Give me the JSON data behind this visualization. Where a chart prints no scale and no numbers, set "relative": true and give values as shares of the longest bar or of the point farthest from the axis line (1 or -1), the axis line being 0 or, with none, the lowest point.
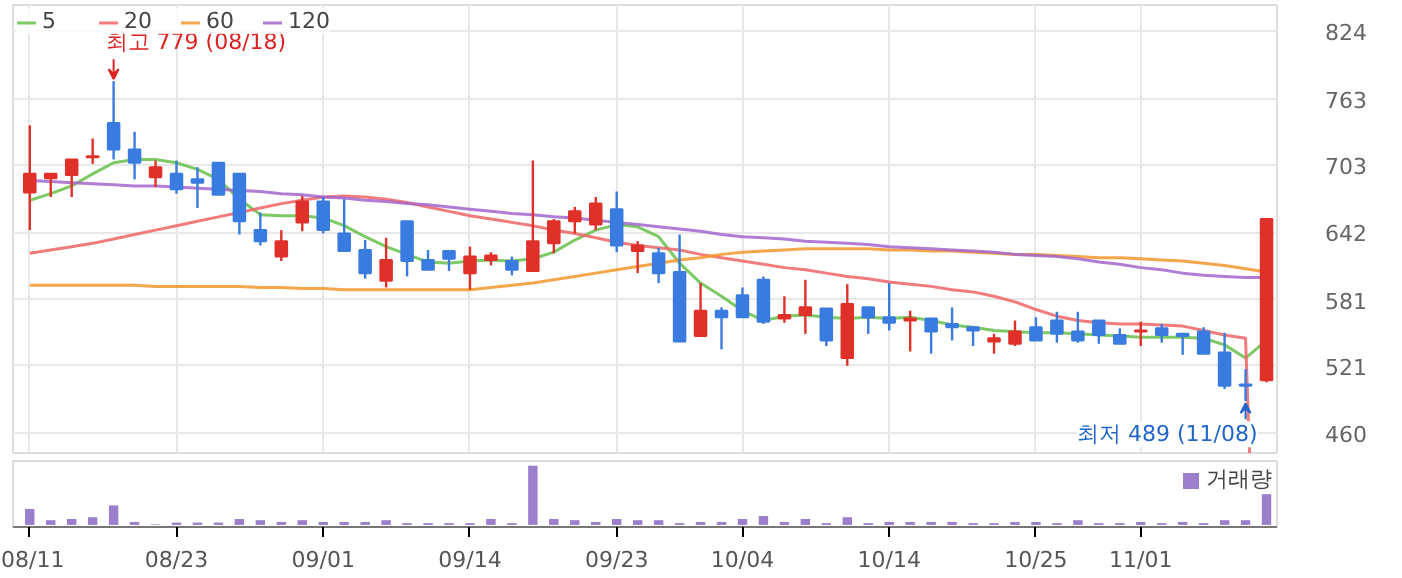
{
  "chart_data": [
    {
      "type": "candlestick",
      "categories": [
        null,
        null,
        null,
        null,
        null,
        null,
        null,
        null,
        null,
        null,
        null,
        null,
        null,
        null,
        null,
        null,
        null,
        null,
        null,
        null,
        null,
        null,
        null,
        null,
        null,
        null,
        null,
        null,
        null,
        null,
        null,
        null,
        null,
        null,
        null,
        null,
        null,
        null,
        null,
        null,
        null,
        null,
        null,
        null,
        null,
        null,
        null,
        null,
        null,
        null,
        null,
        null,
        null,
        null,
        null,
        null,
        null,
        null,
        null,
        null
      ],
      "ohlc": [
        [
          678,
          739,
          644,
          695
        ],
        [
          691,
          695,
          674,
          695
        ],
        [
          694,
          708,
          674,
          708
        ],
        [
          710,
          727,
          704,
          711
        ],
        [
          741,
          779,
          708,
          717
        ],
        [
          717,
          733,
          690,
          705
        ],
        [
          692,
          707,
          683,
          701
        ],
        [
          695,
          707,
          677,
          681
        ],
        [
          690,
          701,
          664,
          687
        ],
        [
          705,
          705,
          676,
          676
        ],
        [
          695,
          695,
          640,
          652
        ],
        [
          644,
          660,
          630,
          634
        ],
        [
          620,
          644,
          616,
          634
        ],
        [
          651,
          675,
          643,
          670
        ],
        [
          670,
          674,
          641,
          644
        ],
        [
          641,
          672,
          625,
          625
        ],
        [
          626,
          635,
          600,
          605
        ],
        [
          598,
          637,
          592,
          617
        ],
        [
          652,
          652,
          602,
          616
        ],
        [
          617,
          626,
          608,
          608
        ],
        [
          625,
          626,
          607,
          618
        ],
        [
          605,
          629,
          590,
          620
        ],
        [
          617,
          624,
          612,
          621
        ],
        [
          616,
          620,
          603,
          608
        ],
        [
          607,
          707,
          607,
          634
        ],
        [
          632,
          654,
          623,
          652
        ],
        [
          652,
          665,
          641,
          661
        ],
        [
          649,
          674,
          644,
          668
        ],
        [
          663,
          679,
          624,
          630
        ],
        [
          625,
          634,
          605,
          630
        ],
        [
          623,
          628,
          596,
          605
        ],
        [
          606,
          640,
          543,
          543
        ],
        [
          548,
          596,
          548,
          571
        ],
        [
          571,
          574,
          536,
          565
        ],
        [
          585,
          592,
          565,
          565
        ],
        [
          599,
          602,
          559,
          561
        ],
        [
          564,
          584,
          560,
          567
        ],
        [
          567,
          599,
          550,
          574
        ],
        [
          573,
          573,
          539,
          544
        ],
        [
          528,
          595,
          521,
          577
        ],
        [
          574,
          574,
          550,
          565
        ],
        [
          565,
          596,
          553,
          560
        ],
        [
          562,
          571,
          534,
          564
        ],
        [
          564,
          564,
          532,
          552
        ],
        [
          559,
          574,
          544,
          556
        ],
        [
          556,
          557,
          539,
          553
        ],
        [
          543,
          550,
          532,
          546
        ],
        [
          541,
          562,
          539,
          552
        ],
        [
          556,
          565,
          544,
          544
        ],
        [
          562,
          570,
          542,
          550
        ],
        [
          552,
          570,
          542,
          544
        ],
        [
          562,
          562,
          541,
          549
        ],
        [
          549,
          555,
          541,
          541
        ],
        [
          552,
          561,
          539,
          553
        ],
        [
          555,
          559,
          542,
          549
        ],
        [
          550,
          550,
          531,
          548
        ],
        [
          552,
          556,
          532,
          532
        ],
        [
          533,
          551,
          500,
          503
        ],
        [
          504,
          518,
          489,
          503
        ],
        [
          508,
          654,
          506,
          654
        ]
      ],
      "colors": [
        "#e0302a",
        "#e0302a",
        "#e0302a",
        "#e0302a",
        "#3a7be0",
        "#3a7be0",
        "#e0302a",
        "#3a7be0",
        "#3a7be0",
        "#3a7be0",
        "#3a7be0",
        "#3a7be0",
        "#e0302a",
        "#e0302a",
        "#3a7be0",
        "#3a7be0",
        "#3a7be0",
        "#e0302a",
        "#3a7be0",
        "#3a7be0",
        "#3a7be0",
        "#e0302a",
        "#e0302a",
        "#3a7be0",
        "#e0302a",
        "#e0302a",
        "#e0302a",
        "#e0302a",
        "#3a7be0",
        "#e0302a",
        "#3a7be0",
        "#3a7be0",
        "#e0302a",
        "#3a7be0",
        "#3a7be0",
        "#3a7be0",
        "#e0302a",
        "#e0302a",
        "#3a7be0",
        "#e0302a",
        "#3a7be0",
        "#3a7be0",
        "#e0302a",
        "#3a7be0",
        "#3a7be0",
        "#3a7be0",
        "#e0302a",
        "#e0302a",
        "#3a7be0",
        "#3a7be0",
        "#3a7be0",
        "#3a7be0",
        "#3a7be0",
        "#e0302a",
        "#3a7be0",
        "#3a7be0",
        "#3a7be0",
        "#3a7be0",
        "#3a7be0",
        "#e0302a"
      ],
      "series": [
        {
          "type": "line",
          "name": "5",
          "color": "#66c04a",
          "values": [
            671,
            677,
            684,
            695,
            705,
            708,
            708,
            705,
            699,
            690,
            672,
            658,
            657,
            657,
            655,
            648,
            638,
            629,
            622,
            615,
            614,
            616,
            617,
            616,
            618,
            624,
            635,
            644,
            649,
            647,
            638,
            614,
            596,
            584,
            571,
            562,
            566,
            567,
            565,
            564,
            565,
            564,
            565,
            562,
            558,
            556,
            553,
            552,
            551,
            551,
            550,
            549,
            548,
            547,
            547,
            547,
            546,
            540,
            528,
            544
          ]
        },
        {
          "type": "line",
          "name": "20",
          "color": "#f06464",
          "values": [
            623,
            626,
            629,
            632,
            636,
            640,
            644,
            648,
            652,
            656,
            660,
            664,
            668,
            671,
            674,
            675,
            674,
            672,
            669,
            665,
            661,
            657,
            654,
            651,
            648,
            644,
            641,
            637,
            633,
            630,
            628,
            626,
            622,
            619,
            616,
            613,
            610,
            608,
            605,
            602,
            600,
            597,
            595,
            593,
            590,
            588,
            584,
            579,
            572,
            566,
            562,
            560,
            559,
            559,
            558,
            557,
            553,
            549,
            546,
            null
          ]
        },
        {
          "type": "line",
          "name": "60",
          "color": "#f5962a",
          "values": [
            594,
            594,
            594,
            594,
            594,
            594,
            593,
            593,
            593,
            593,
            593,
            592,
            592,
            591,
            591,
            590,
            590,
            590,
            590,
            590,
            590,
            590,
            592,
            594,
            596,
            599,
            602,
            605,
            608,
            611,
            614,
            617,
            619,
            622,
            624,
            625,
            626,
            627,
            627,
            627,
            627,
            626,
            626,
            625,
            625,
            624,
            623,
            622,
            622,
            621,
            620,
            619,
            619,
            618,
            617,
            616,
            614,
            612,
            609,
            606
          ]
        },
        {
          "type": "line",
          "name": "120",
          "color": "#a366cc",
          "values": [
            689,
            688,
            687,
            686,
            685,
            684,
            684,
            683,
            682,
            681,
            680,
            679,
            677,
            676,
            674,
            673,
            671,
            670,
            668,
            667,
            665,
            663,
            661,
            659,
            658,
            656,
            655,
            653,
            651,
            649,
            647,
            645,
            643,
            640,
            638,
            637,
            636,
            634,
            633,
            632,
            631,
            629,
            628,
            627,
            626,
            625,
            624,
            622,
            621,
            620,
            618,
            615,
            613,
            610,
            608,
            605,
            603,
            602,
            601,
            601
          ]
        }
      ],
      "ylim": [
        442,
        848
      ],
      "yticks": [
        460,
        521,
        581,
        642,
        703,
        763,
        824
      ],
      "grid": true,
      "legend": "top left",
      "tick_labels": "y",
      "annotations": [
        "최고 779 (08/18)",
        "최저 489 (11/08)"
      ]
    },
    {
      "type": "bar",
      "relative": true,
      "categories": [
        "08/11",
        null,
        null,
        null,
        null,
        null,
        null,
        "08/23",
        null,
        null,
        null,
        null,
        null,
        null,
        "09/01",
        null,
        null,
        null,
        null,
        null,
        null,
        "09/14",
        null,
        null,
        null,
        null,
        null,
        null,
        "09/23",
        null,
        null,
        null,
        null,
        null,
        "10/04",
        null,
        null,
        null,
        null,
        null,
        null,
        "10/14",
        null,
        null,
        null,
        null,
        null,
        null,
        "10/25",
        null,
        null,
        null,
        null,
        "11/01",
        null,
        null,
        null,
        null,
        null,
        null
      ],
      "series": [
        {
          "name": "거래량",
          "color": "#9b7fcc",
          "values": [
            0.27,
            0.08,
            0.1,
            0.13,
            0.33,
            0.05,
            0.01,
            0.04,
            0.04,
            0.04,
            0.1,
            0.08,
            0.05,
            0.08,
            0.05,
            0.05,
            0.05,
            0.08,
            0.03,
            0.03,
            0.03,
            0.03,
            0.1,
            0.03,
            1,
            0.1,
            0.08,
            0.05,
            0.1,
            0.08,
            0.08,
            0.03,
            0.05,
            0.05,
            0.1,
            0.15,
            0.05,
            0.1,
            0.03,
            0.13,
            0.03,
            0.05,
            0.05,
            0.05,
            0.05,
            0.03,
            0.03,
            0.05,
            0.05,
            0.03,
            0.08,
            0.03,
            0.03,
            0.05,
            0.03,
            0.05,
            0.03,
            0.08,
            0.08,
            0.52
          ]
        }
      ],
      "legend": "top right",
      "tick_labels": "x"
    }
  ]
}
